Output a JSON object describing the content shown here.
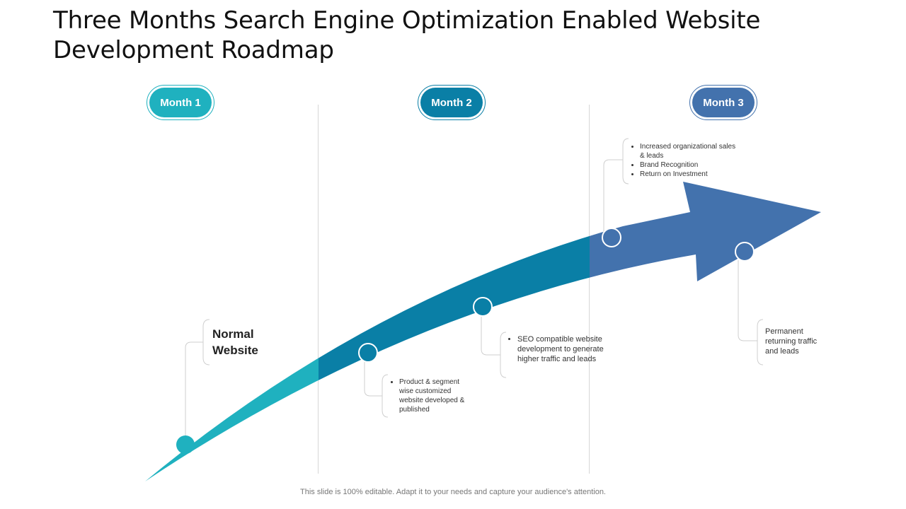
{
  "title": "Three Months Search Engine Optimization Enabled Website Development Roadmap",
  "months": [
    {
      "label": "Month 1",
      "color": "#1fb1bf"
    },
    {
      "label": "Month 2",
      "color": "#0a7fa6"
    },
    {
      "label": "Month 3",
      "color": "#4372ad"
    }
  ],
  "milestones": {
    "normal_website": "Normal Website",
    "product_segment": [
      "Product & segment wise customized website developed & published"
    ],
    "seo_compatible": [
      "SEO compatible website development to generate higher traffic and leads"
    ],
    "month3_benefits": [
      "Increased organizational sales & leads",
      "Brand Recognition",
      "Return on Investment"
    ],
    "permanent": "Permanent returning traffic and leads"
  },
  "colors": {
    "arrow_light": "#1fb1bf",
    "arrow_mid": "#0a7fa6",
    "arrow_dark": "#4372ad",
    "connector": "#cfcfcf"
  },
  "footer": "This slide is 100% editable. Adapt it to your needs and capture your audience's attention."
}
